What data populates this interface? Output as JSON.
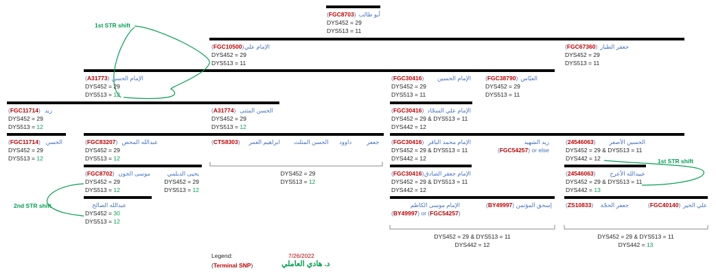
{
  "top": {
    "snp": "FGC8703",
    "name": "أبو طالب",
    "l1": "DYS452 = 29",
    "l2": "DYS513 = 11"
  },
  "ali": {
    "snp": "FGC10500",
    "name": "الإمام علي",
    "l1": "DYS452 = 29",
    "l2": "DYS513 = 11"
  },
  "jafar_tayyar": {
    "snp": "FGC67360",
    "name": "جعفر الطيار",
    "l1": "DYS452 = 29",
    "l2": "DYS513 = 11"
  },
  "hasan": {
    "snp": "A31773",
    "name": "الإمام الحسن",
    "l1": "DYS452 = 29",
    "l2a": "DYS513 = ",
    "l2b": "12"
  },
  "husayn": {
    "snp": "FGC30416",
    "name": "الإمام الحسين",
    "l1": "DYS452 = 29",
    "l2": "DYS513 = 11"
  },
  "abbas": {
    "snp": "FGC38790",
    "name": "العبّاس",
    "l1": "DYS452 = 29",
    "l2": "DYS513 = 11"
  },
  "zayd": {
    "snp": "FGC11714",
    "name": "زيد",
    "l1": "DYS452 = 29",
    "l2a": "DYS513 = ",
    "l2b": "12"
  },
  "hasan_muthanna": {
    "snp": "A31774",
    "name": "الحسن المثنى",
    "l1": "DYS452 = 29",
    "l2a": "DYS513 = ",
    "l2b": "12"
  },
  "sajjad": {
    "snp": "FGC30416",
    "name": "الإمام علي السجّاد",
    "l1": "DYS452 = 29 & DYS513 = 11",
    "l2": "DYS442 = 12"
  },
  "alhasan": {
    "snp": "FGC11714",
    "name": "الحسن",
    "l1": "DYS452 = 29",
    "l2a": "DYS513 = ",
    "l2b": "12"
  },
  "mahd": {
    "snp": "FGC83207",
    "name": "عبدالله المحض",
    "l1": "DYS452 = 29",
    "l2a": "DYS513 = ",
    "l2b": "12"
  },
  "ghamr": {
    "snp": "CTS8303",
    "name": "ابراهيم الغمر"
  },
  "muthallath_names": {
    "n1": "الحسن المثلث",
    "n2": "داوود",
    "n3": "جعفر"
  },
  "muthallath_summary": {
    "l1": "DYS452 = 29",
    "l2a": "DYS513 = ",
    "l2b": "12"
  },
  "baqir": {
    "snp": "FGC30416",
    "name": "الإمام محمد الباقر",
    "l1": "DYS452 = 29 & DYS513 = 11",
    "l2": "DYS442 = 12"
  },
  "zayd_shahid": {
    "name": "زيد الشهيد",
    "snp": "FGC54257",
    "tail": " or else"
  },
  "asghar": {
    "snp": "24546063",
    "name": "الحسين الأصغر",
    "l1": "DYS452 = 29 & DYS513 = 11",
    "l2": "DYS442 = 12"
  },
  "jawn": {
    "snp": "FGC8702",
    "name": "موسى الجون",
    "l1": "DYS452 = 29",
    "l2a": "DYS513 = ",
    "l2b": "12"
  },
  "daylami": {
    "name": "يحيى الديلمي",
    "l1": "DYS452 = 29",
    "l2a": "DYS513 = ",
    "l2b": "12"
  },
  "sadiq": {
    "snp": "FGC30416",
    "name": "الإمام جعفر الصادق",
    "l1": "DYS452 = 29 & DYS513 = 11",
    "l2": "DYS442 = 12"
  },
  "araj": {
    "snp": "24546063",
    "name": "عبيدالله الأعرج",
    "l1": "DYS452 = 29 & DYS513 = 11",
    "l2a": "DYS442 = ",
    "l2b": "13"
  },
  "salih": {
    "name": "عبدالله الصالح",
    "l1a": "DYS452 = ",
    "l1b": "30",
    "l2a": "DYS513 = ",
    "l2b": "12"
  },
  "kazim": {
    "name": "الإمام موسى الكاظم",
    "snp1": "BY49997",
    "mid": " or ",
    "snp2": "FGC54257"
  },
  "ishaq": {
    "snp": "BY49997",
    "name": "إسحق المؤتمن"
  },
  "hujja": {
    "snp": "ZS10833",
    "name": "جعفر الحجّة"
  },
  "khayr": {
    "snp": "FGC40140",
    "name": "علي الخير"
  },
  "mid_summary": {
    "l1": "DYS452 = 29 & DYS513 = 11",
    "l2": "DYS442 = 12"
  },
  "right_summary": {
    "l1": "DYS452 = 29 & DYS513 = 11",
    "l2a": "DYS442 = ",
    "l2b": "13"
  },
  "annotations": {
    "str1a": "1st STR shift",
    "str1b": "1st STR shift",
    "str2": "2nd STR shift"
  },
  "legend": {
    "label": "Legend:",
    "date": "7/26/2022",
    "terminal": "Terminal SNP",
    "author": "د. هادي العاملي"
  },
  "colors": {
    "snp": "#c00000",
    "name": "#4472c4",
    "shift": "#00a050"
  }
}
